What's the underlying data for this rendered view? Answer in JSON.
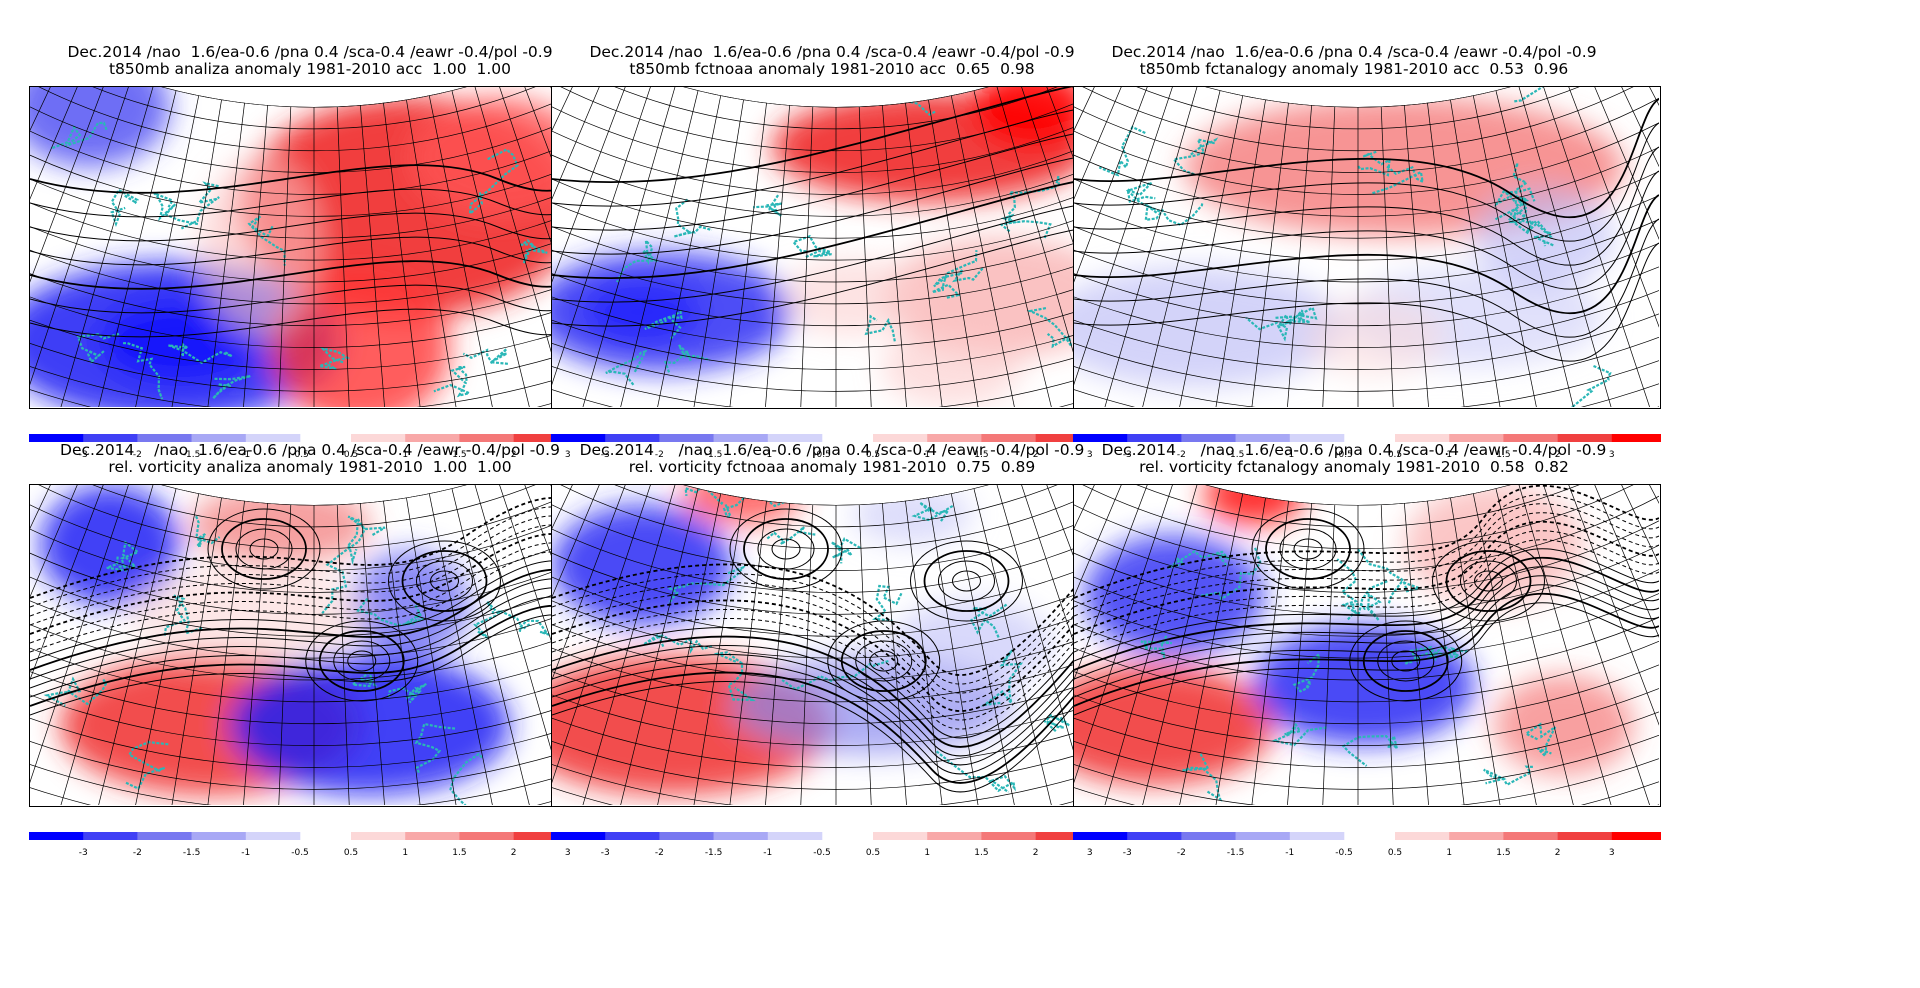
{
  "panels": [
    {
      "line1": "Dec.2014 /nao  1.6/ea-0.6 /pna 0.4 /sca-0.4 /eawr -0.4/pol -0.9",
      "line2": "t850mb analiza anomaly 1981-2010 acc  1.00  1.00",
      "field": "t850mb",
      "source": "analiza"
    },
    {
      "line1": "Dec.2014 /nao  1.6/ea-0.6 /pna 0.4 /sca-0.4 /eawr -0.4/pol -0.9",
      "line2": "t850mb fctnoaa anomaly 1981-2010 acc  0.65  0.98",
      "field": "t850mb",
      "source": "fctnoaa"
    },
    {
      "line1": "Dec.2014 /nao  1.6/ea-0.6 /pna 0.4 /sca-0.4 /eawr -0.4/pol -0.9",
      "line2": "t850mb fctanalogy anomaly 1981-2010 acc  0.53  0.96",
      "field": "t850mb",
      "source": "fctanalogy"
    },
    {
      "line1": "Dec.2014    /nao  1.6/ea-0.6 /pna 0.4 /sca-0.4 /eawr -0.4/pol -0.9",
      "line2": "rel. vorticity analiza anomaly 1981-2010  1.00  1.00",
      "field": "vorticity",
      "source": "analiza"
    },
    {
      "line1": "Dec.2014     /nao  1.6/ea-0.6 /pna 0.4 /sca-0.4 /eawr -0.4/pol -0.9",
      "line2": "rel. vorticity fctnoaa anomaly 1981-2010  0.75  0.89",
      "field": "vorticity",
      "source": "fctnoaa"
    },
    {
      "line1": "Dec.2014     /nao  1.6/ea-0.6 /pna 0.4 /sca-0.4 /eawr -0.4/pol -0.9",
      "line2": "rel. vorticity fctanalogy anomaly 1981-2010  0.58  0.82",
      "field": "vorticity",
      "source": "fctanalogy"
    }
  ],
  "colorbar": {
    "neg_labels": [
      "-3",
      "-2",
      "-1.5",
      "-1",
      "-0.5"
    ],
    "pos_labels": [
      "0.5",
      "1",
      "1.5",
      "2",
      "3"
    ],
    "neg_colors": [
      "#0000ff",
      "#4040f5",
      "#7878f0",
      "#a8a8f5",
      "#d4d4fa"
    ],
    "pos_colors": [
      "#fcd8d8",
      "#f8a8a8",
      "#f47878",
      "#f04040",
      "#ff0000"
    ]
  },
  "colors": {
    "coastline": "#2ab7b7",
    "contour": "#000000",
    "grid": "#000000"
  }
}
